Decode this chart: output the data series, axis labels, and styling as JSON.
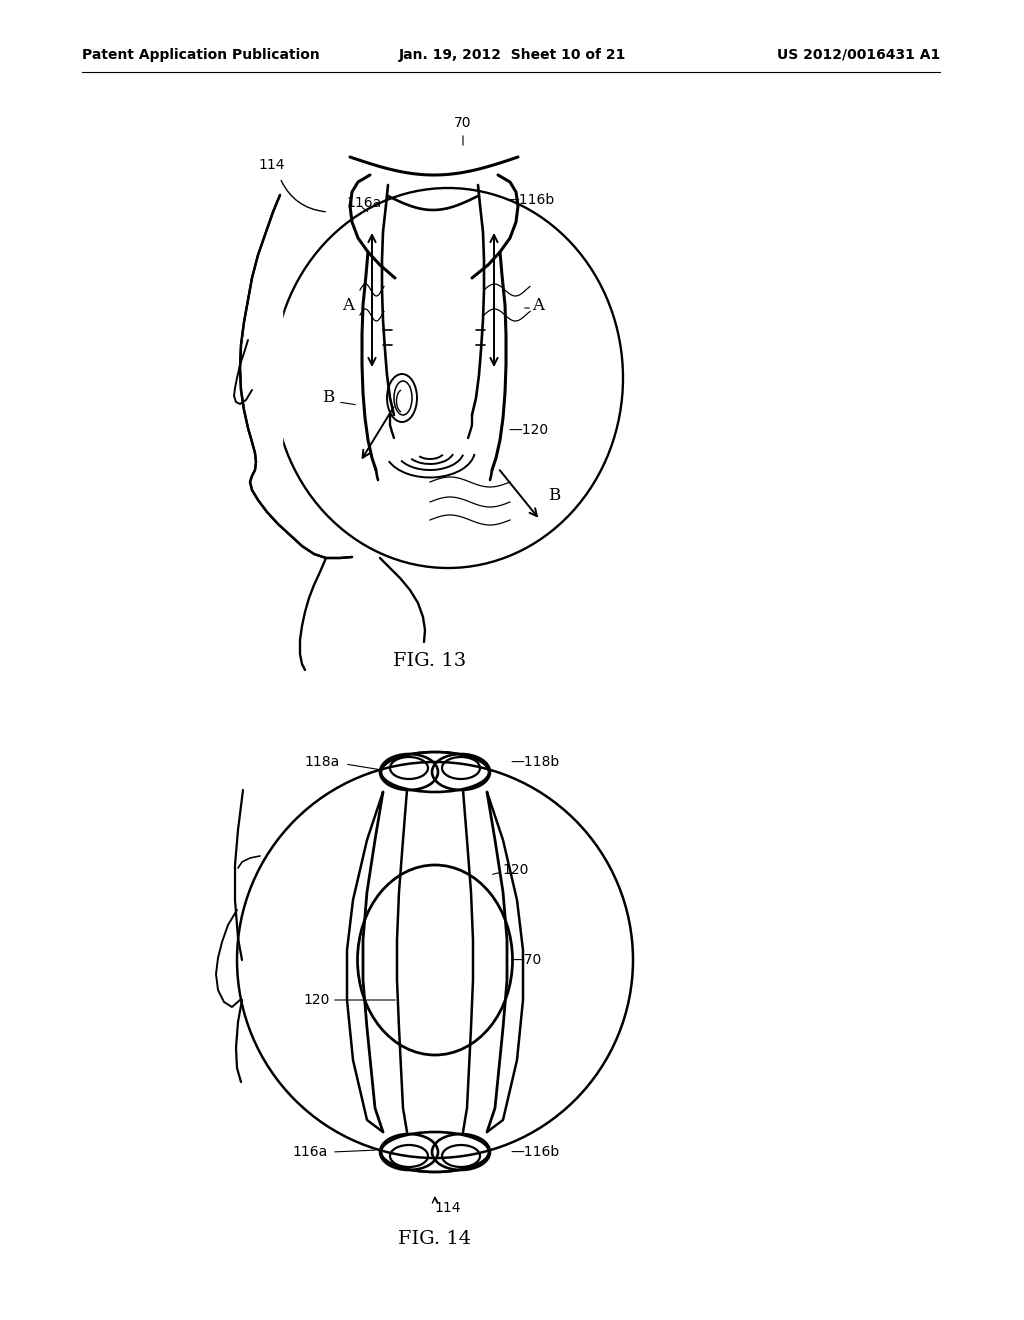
{
  "bg_color": "#ffffff",
  "header_left": "Patent Application Publication",
  "header_center": "Jan. 19, 2012  Sheet 10 of 21",
  "header_right": "US 2012/0016431 A1",
  "fig13_label": "FIG. 13",
  "fig14_label": "FIG. 14",
  "lc": "#000000",
  "lw": 1.4,
  "fs": 10,
  "hfs": 10
}
